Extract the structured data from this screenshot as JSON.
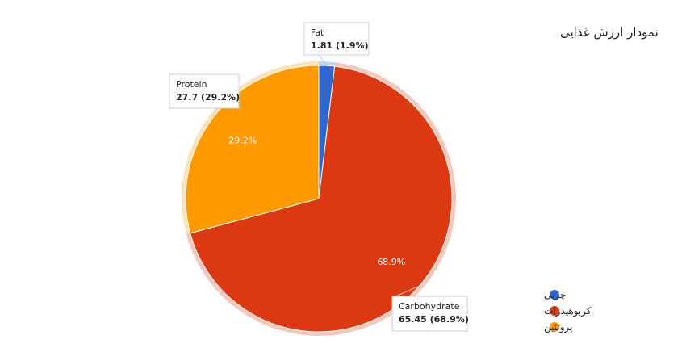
{
  "chart_data": {
    "type": "pie",
    "title": "نمودار ارزش غذایی",
    "slices": [
      {
        "label": "Fat",
        "value": 1.81,
        "percent_text": "1.9%",
        "callout_value": "1.81 (1.9%)",
        "color": "#3366cc",
        "legend_label": "چربی",
        "show_inner_label": false
      },
      {
        "label": "Carbohydrate",
        "value": 65.45,
        "percent_text": "68.9%",
        "callout_value": "65.45 (68.9%)",
        "color": "#dc3912",
        "legend_label": "کربوهیدرات",
        "show_inner_label": true
      },
      {
        "label": "Protein",
        "value": 27.7,
        "percent_text": "29.2%",
        "callout_value": "27.7 (29.2%)",
        "color": "#ff9900",
        "legend_label": "پروتئین",
        "show_inner_label": true
      }
    ],
    "start_angle_deg": 0,
    "direction": "clockwise",
    "legend_position": "bottom-right",
    "callouts_shown": true
  }
}
